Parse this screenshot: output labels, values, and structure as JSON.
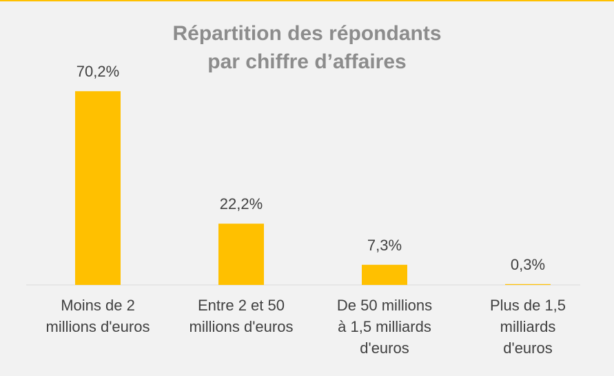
{
  "chart_data": {
    "type": "bar",
    "title": "Répartition des répondants\npar chiffre d’affaires",
    "categories": [
      "Moins de 2\nmillions d'euros",
      "Entre 2 et 50\nmillions d'euros",
      "De 50 millions\nà 1,5 milliards\nd'euros",
      "Plus de 1,5\nmilliards\nd'euros"
    ],
    "values": [
      70.2,
      22.2,
      7.3,
      0.3
    ],
    "value_labels": [
      "70,2%",
      "22,2%",
      "7,3%",
      "0,3%"
    ],
    "color": "#ffc000"
  }
}
